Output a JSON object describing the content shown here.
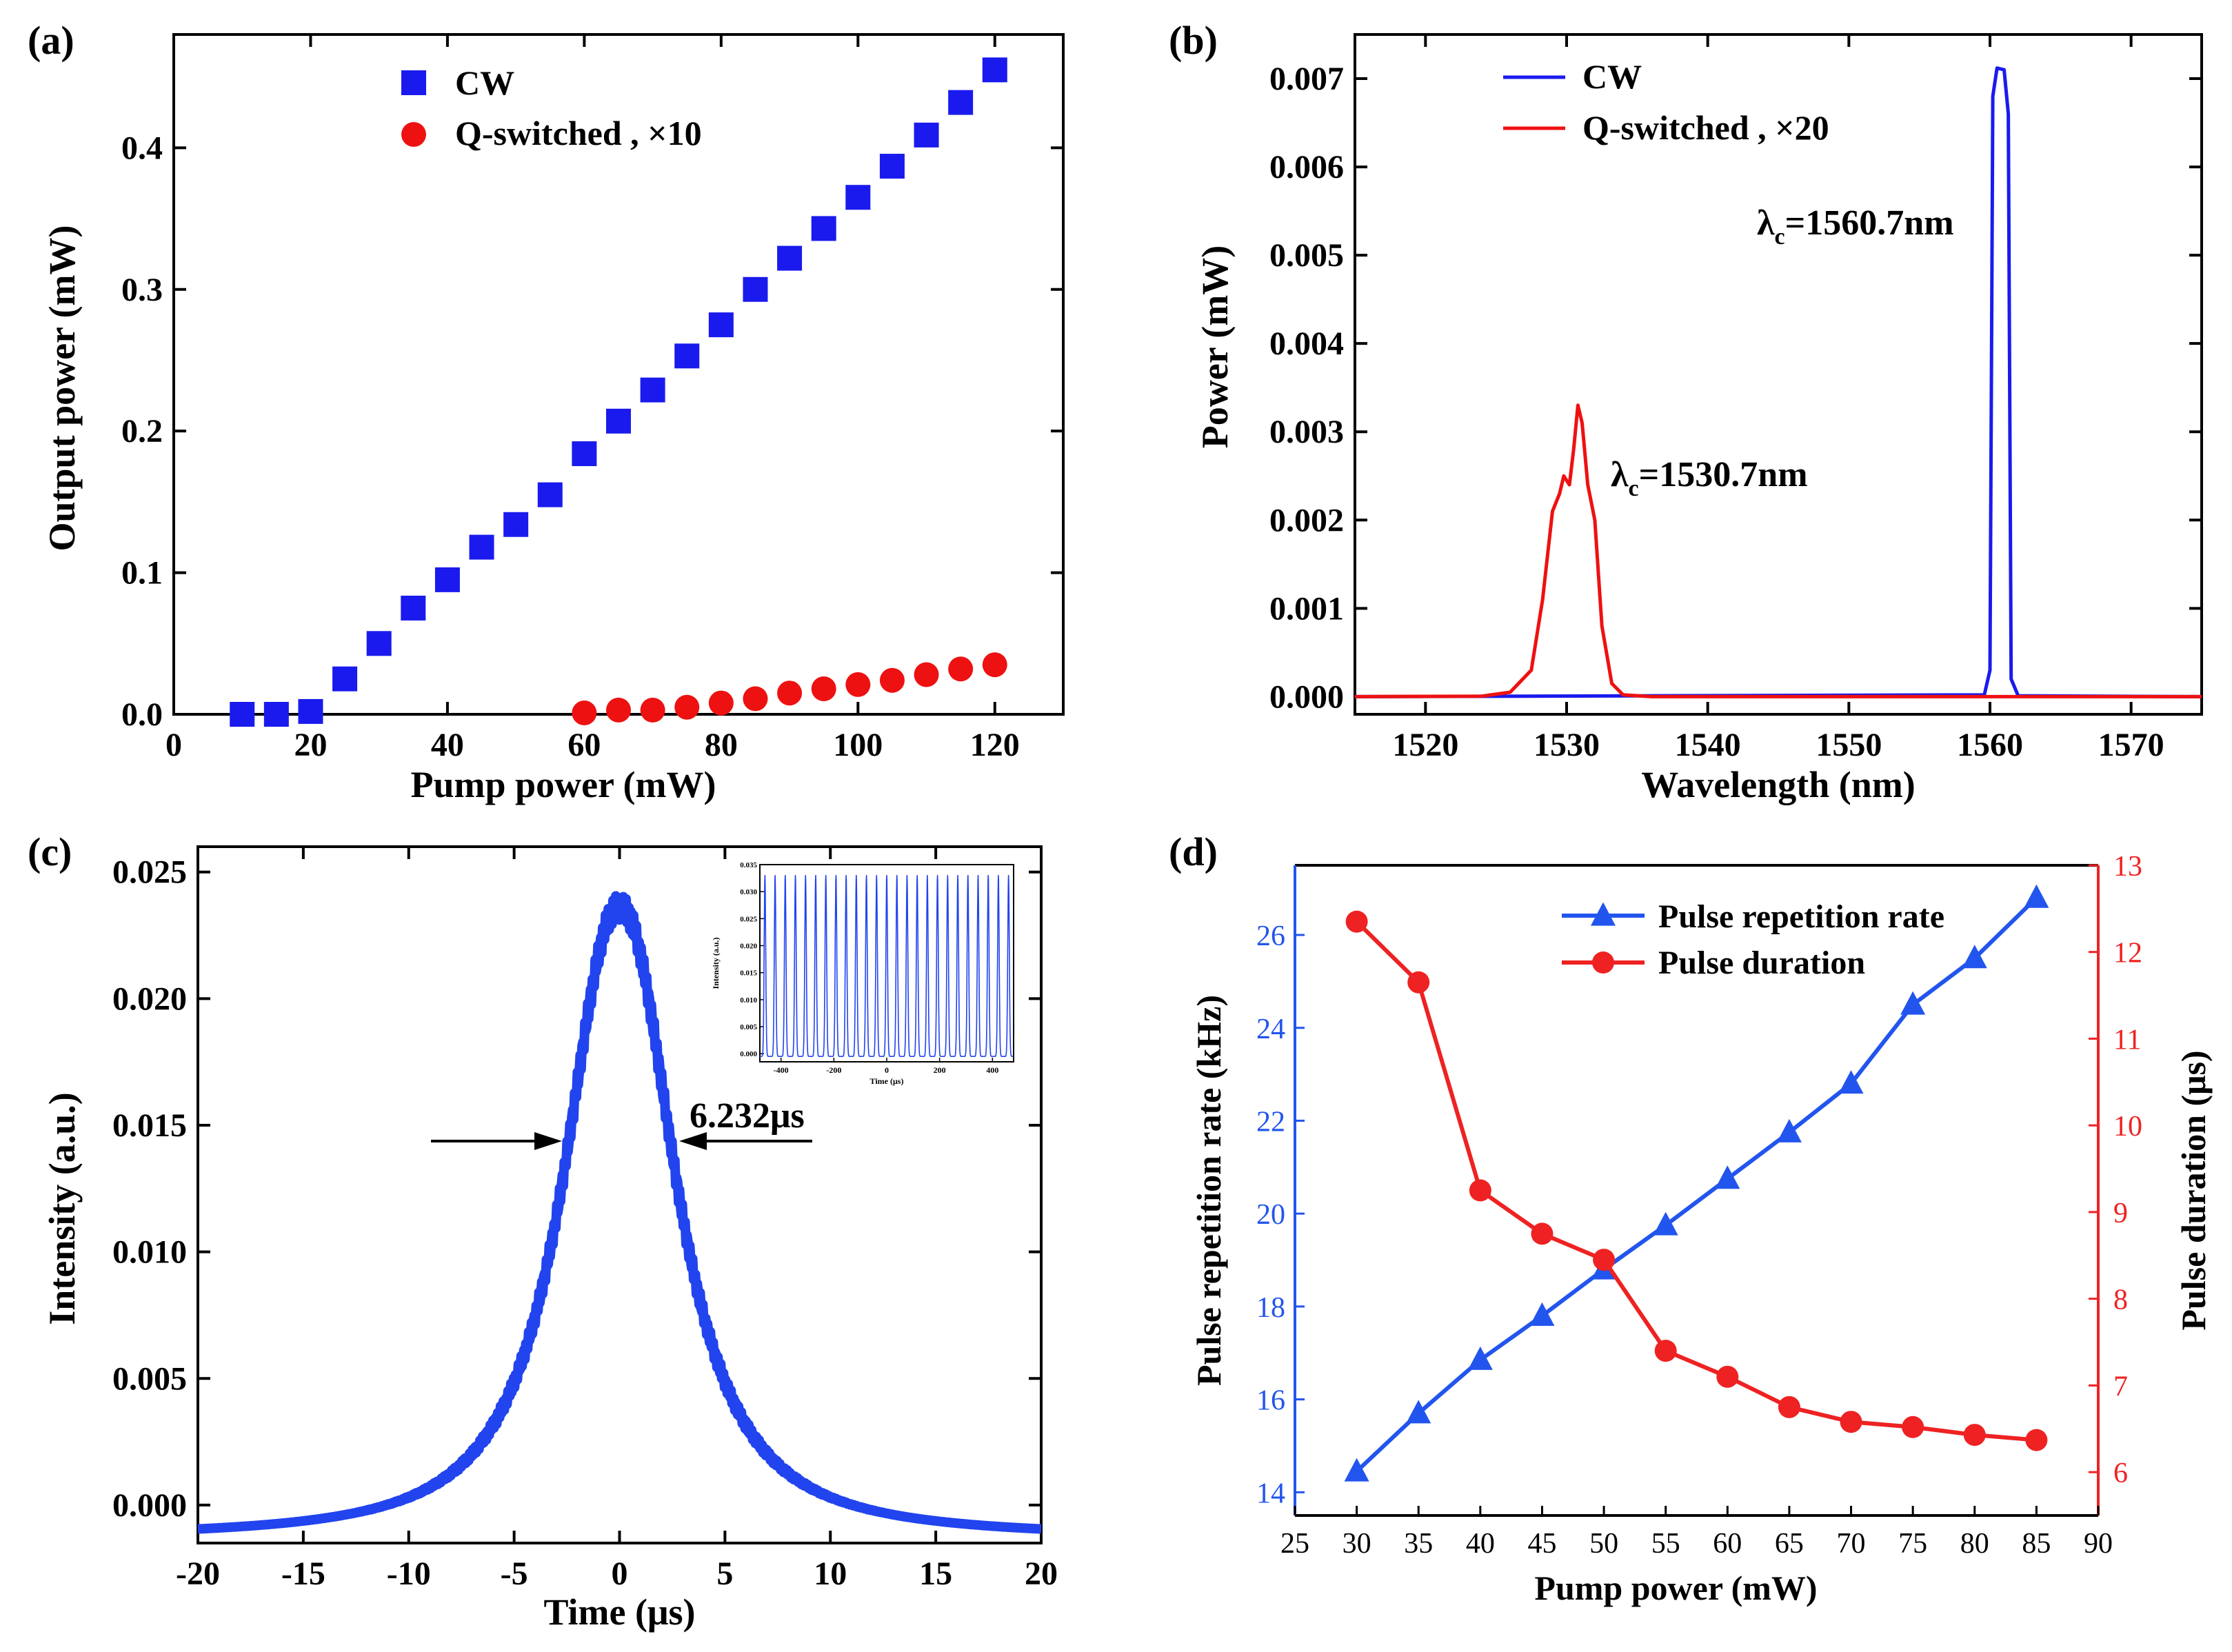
{
  "chart_data": [
    {
      "panel": "(a)",
      "type": "scatter",
      "xlabel": "Pump power (mW)",
      "ylabel": "Output power (mW)",
      "xlim": [
        0,
        130
      ],
      "ylim": [
        0,
        0.48
      ],
      "xticks": [
        "0",
        "20",
        "40",
        "60",
        "80",
        "100",
        "120"
      ],
      "yticks": [
        "0.0",
        "0.1",
        "0.2",
        "0.3",
        "0.4"
      ],
      "legend_position": "top-center",
      "series": [
        {
          "name": "CW",
          "marker": "square",
          "color": "#1a1aee",
          "x": [
            10,
            15,
            20,
            25,
            30,
            35,
            40,
            45,
            50,
            55,
            60,
            65,
            70,
            75,
            80,
            85,
            90,
            95,
            100,
            105,
            110,
            115,
            120
          ],
          "y": [
            0.0,
            0.0,
            0.002,
            0.025,
            0.05,
            0.075,
            0.095,
            0.118,
            0.134,
            0.155,
            0.184,
            0.207,
            0.229,
            0.253,
            0.275,
            0.3,
            0.322,
            0.343,
            0.365,
            0.387,
            0.409,
            0.432,
            0.455
          ]
        },
        {
          "name": "Q-switched , ×10",
          "marker": "circle",
          "color": "#ee1111",
          "x": [
            60,
            65,
            70,
            75,
            80,
            85,
            90,
            95,
            100,
            105,
            110,
            115,
            120
          ],
          "y": [
            0.001,
            0.003,
            0.003,
            0.005,
            0.008,
            0.011,
            0.015,
            0.018,
            0.021,
            0.024,
            0.028,
            0.032,
            0.035
          ]
        }
      ]
    },
    {
      "panel": "(b)",
      "type": "line",
      "xlabel": "Wavelength (nm)",
      "ylabel": "Power (mW)",
      "xlim": [
        1515,
        1575
      ],
      "ylim": [
        -0.0002,
        0.0075
      ],
      "xticks": [
        "1520",
        "1530",
        "1540",
        "1550",
        "1560",
        "1570"
      ],
      "yticks": [
        "0.000",
        "0.001",
        "0.002",
        "0.003",
        "0.004",
        "0.005",
        "0.006",
        "0.007"
      ],
      "legend_position": "top-left",
      "annotations": [
        {
          "main": "λ",
          "sub": "c",
          "rest": "=1560.7nm"
        },
        {
          "main": "λ",
          "sub": "c",
          "rest": "=1530.7nm"
        }
      ],
      "series": [
        {
          "name": "CW",
          "color": "#1a1aee",
          "x": [
            1515,
            1559.6,
            1560.0,
            1560.2,
            1560.5,
            1561.0,
            1561.3,
            1561.5,
            1562.0,
            1575
          ],
          "y": [
            0,
            2e-05,
            0.0003,
            0.0068,
            0.00712,
            0.0071,
            0.0066,
            0.0002,
            1e-05,
            0
          ]
        },
        {
          "name": "Q-switched , ×20",
          "color": "#ee1111",
          "x": [
            1515,
            1524,
            1526,
            1527.5,
            1528.3,
            1529.0,
            1529.5,
            1529.8,
            1530.2,
            1530.5,
            1530.8,
            1531.1,
            1531.5,
            1532.0,
            1532.5,
            1533.2,
            1534.0,
            1536,
            1575
          ],
          "y": [
            0,
            5e-06,
            5e-05,
            0.0003,
            0.0011,
            0.0021,
            0.0023,
            0.0025,
            0.0024,
            0.0028,
            0.0033,
            0.0031,
            0.0024,
            0.002,
            0.0008,
            0.00015,
            2e-05,
            0,
            0
          ]
        }
      ]
    },
    {
      "panel": "(c)",
      "type": "line",
      "xlabel": "Time (μs)",
      "ylabel": "Intensity (a.u.)",
      "xlim": [
        -20,
        20
      ],
      "ylim": [
        -0.0015,
        0.026
      ],
      "xticks": [
        "-20",
        "-15",
        "-10",
        "-5",
        "0",
        "5",
        "10",
        "15",
        "20"
      ],
      "yticks": [
        "0.000",
        "0.005",
        "0.010",
        "0.015",
        "0.020",
        "0.025"
      ],
      "annotation": "6.232μs",
      "series": [
        {
          "name": "",
          "color": "#2244ee",
          "x": [
            -20,
            -15,
            -12,
            -10,
            -8,
            -6,
            -5,
            -4,
            -3,
            -2,
            -1,
            0,
            1,
            2,
            3,
            4,
            5,
            6,
            8,
            10,
            12,
            15,
            20
          ],
          "y": [
            -0.0013,
            -0.0012,
            -0.001,
            -0.0006,
            0.0005,
            0.0035,
            0.006,
            0.0093,
            0.0135,
            0.0178,
            0.0215,
            0.0235,
            0.0215,
            0.0178,
            0.0135,
            0.0093,
            0.006,
            0.0035,
            0.0005,
            -0.0006,
            -0.001,
            -0.0012,
            -0.0013
          ]
        }
      ],
      "inset": {
        "type": "line",
        "xlabel": "Time (μs)",
        "ylabel": "Intensity (a.u.)",
        "xlim": [
          -480,
          480
        ],
        "ylim": [
          -0.0015,
          0.035
        ],
        "xticks": [
          "-400",
          "-200",
          "0",
          "200",
          "400"
        ],
        "yticks": [
          "0.000",
          "0.005",
          "0.010",
          "0.015",
          "0.020",
          "0.025",
          "0.030",
          "0.035"
        ],
        "pulse_count": 25,
        "pulse_peak": 0.033,
        "baseline": -0.0005,
        "color": "#2244ee"
      }
    },
    {
      "panel": "(d)",
      "type": "line",
      "xlabel": "Pump power (mW)",
      "ylabel": "Pulse repetition rate (kHz)",
      "ylabel_right": "Pulse duration (μs)",
      "xlim": [
        25,
        90
      ],
      "ylim": [
        13.5,
        27.5
      ],
      "ylim_right": [
        5.5,
        13
      ],
      "xticks": [
        "25",
        "30",
        "35",
        "40",
        "45",
        "50",
        "55",
        "60",
        "65",
        "70",
        "75",
        "80",
        "85",
        "90"
      ],
      "yticks": [
        "14",
        "16",
        "18",
        "20",
        "22",
        "24",
        "26"
      ],
      "yticks_right": [
        "6",
        "7",
        "8",
        "9",
        "10",
        "11",
        "12",
        "13"
      ],
      "legend_position": "top-center",
      "series": [
        {
          "name": "Pulse repetition rate",
          "axis": "left",
          "marker": "triangle",
          "color": "#2255ee",
          "x": [
            30,
            35,
            40,
            45,
            50,
            55,
            60,
            65,
            70,
            75,
            80,
            85
          ],
          "y": [
            14.45,
            15.7,
            16.85,
            17.8,
            18.8,
            19.75,
            20.75,
            21.75,
            22.8,
            24.5,
            25.5,
            26.8
          ]
        },
        {
          "name": "Pulse duration",
          "axis": "right",
          "marker": "circle",
          "color": "#ee2222",
          "x": [
            30,
            35,
            40,
            45,
            50,
            55,
            60,
            65,
            70,
            75,
            80,
            85
          ],
          "y": [
            12.35,
            11.65,
            9.25,
            8.75,
            8.45,
            7.4,
            7.1,
            6.75,
            6.58,
            6.52,
            6.43,
            6.37
          ]
        }
      ]
    }
  ]
}
